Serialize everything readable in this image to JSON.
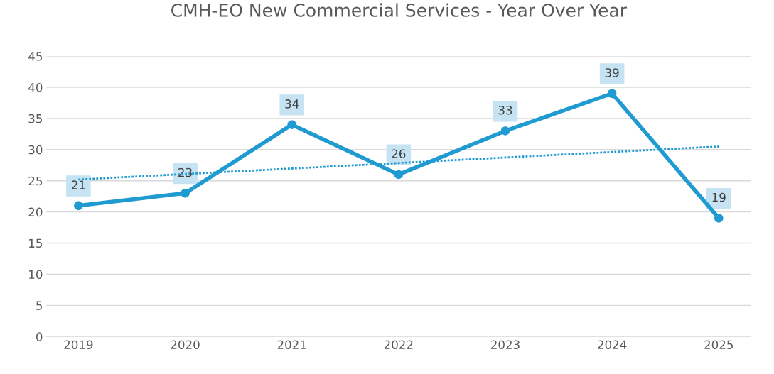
{
  "chart_data": {
    "type": "line",
    "title": "CMH-EO New Commercial Services - Year Over Year",
    "x": [
      2019,
      2020,
      2021,
      2022,
      2023,
      2024,
      2025
    ],
    "series": [
      {
        "color": "#1f9bd1",
        "values": [
          21,
          23,
          34,
          26,
          33,
          39,
          19
        ],
        "marker": "circle",
        "line_style": "solid",
        "data_labels": true
      },
      {
        "color": "#1f9bd1",
        "x": [
          2019,
          2025
        ],
        "values": [
          25.2,
          30.5
        ],
        "marker": "none",
        "line_style": "dotted"
      }
    ],
    "xlim": [
      2018.7,
      2025.3
    ],
    "xticks": [
      2019,
      2020,
      2021,
      2022,
      2023,
      2024,
      2025
    ],
    "ylim": [
      0,
      45
    ],
    "yticks": [
      0,
      5,
      10,
      15,
      20,
      25,
      30,
      35,
      40,
      45
    ],
    "grid": "y"
  }
}
